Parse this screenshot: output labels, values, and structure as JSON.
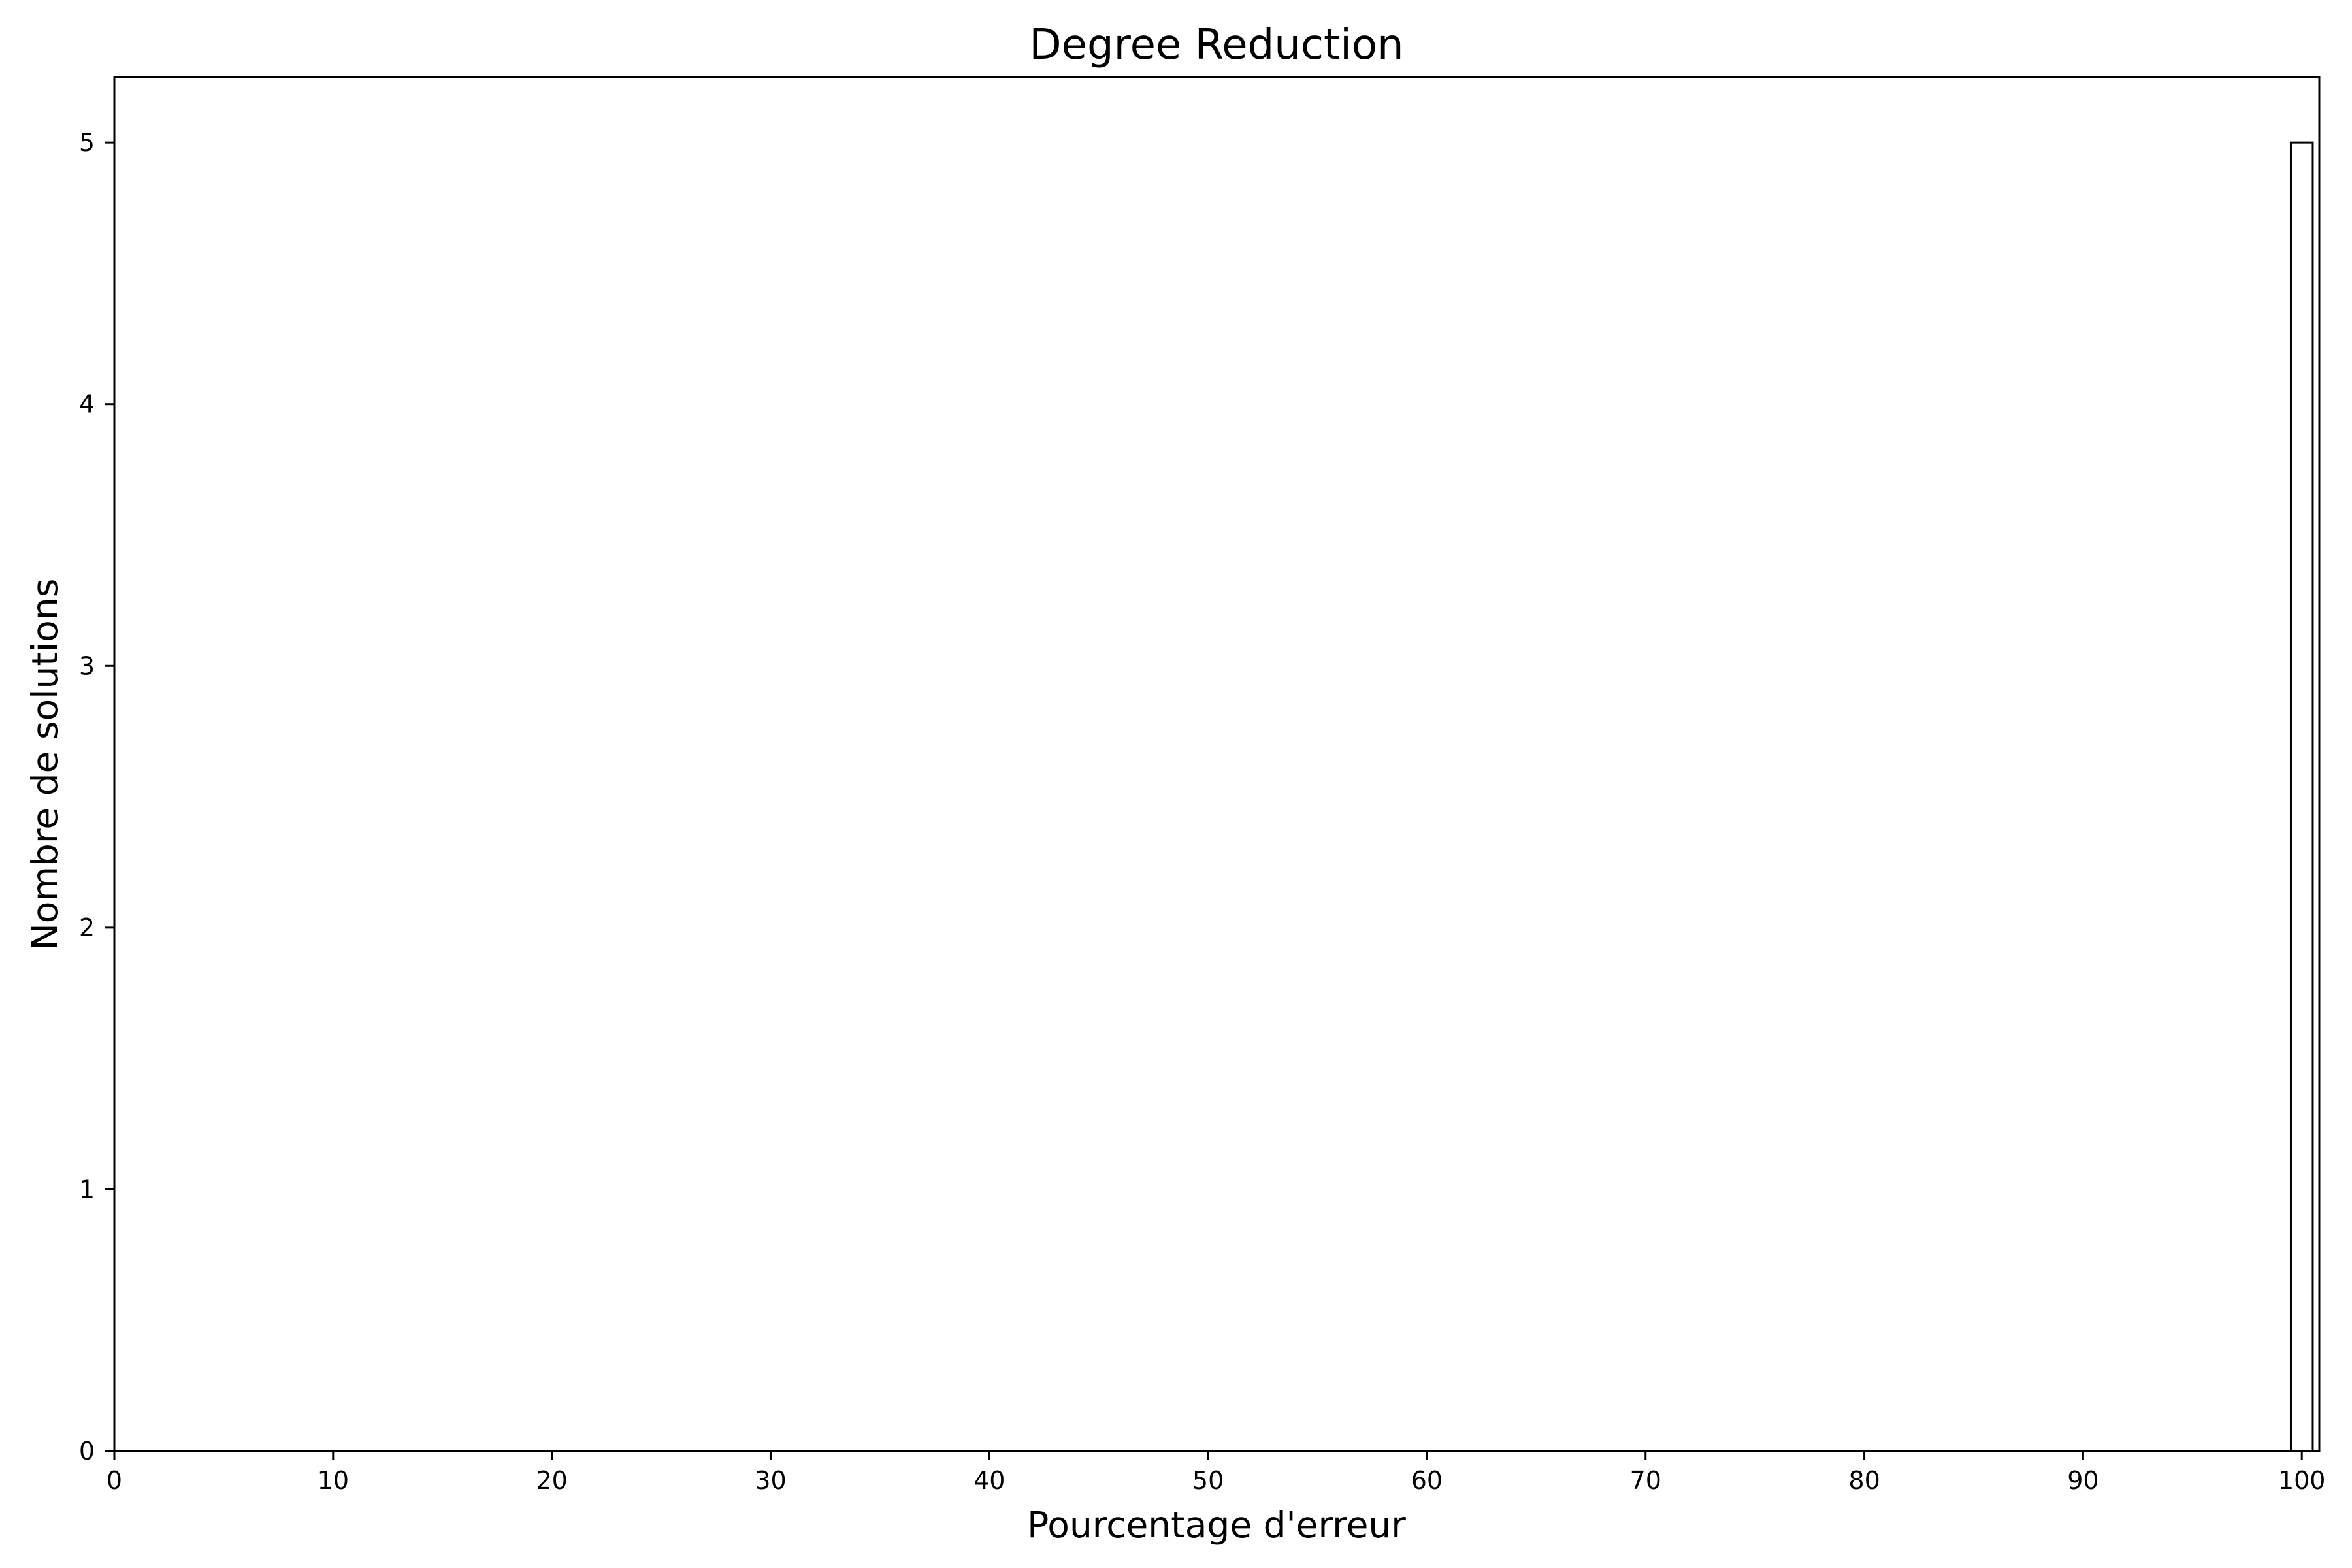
{
  "chart_data": {
    "type": "bar",
    "title": "Degree Reduction",
    "xlabel": "Pourcentage d'erreur",
    "ylabel": "Nombre de solutions",
    "xlim": [
      0,
      100.8
    ],
    "ylim": [
      0,
      5.25
    ],
    "xticks": [
      0,
      10,
      20,
      30,
      40,
      50,
      60,
      70,
      80,
      90,
      100
    ],
    "yticks": [
      0,
      1,
      2,
      3,
      4,
      5
    ],
    "bars": [
      {
        "x_start": 99.5,
        "x_end": 100.5,
        "value": 5
      }
    ],
    "bar_fill": "#ffffff",
    "bar_edge": "#000000",
    "grid": false,
    "legend": "none"
  }
}
